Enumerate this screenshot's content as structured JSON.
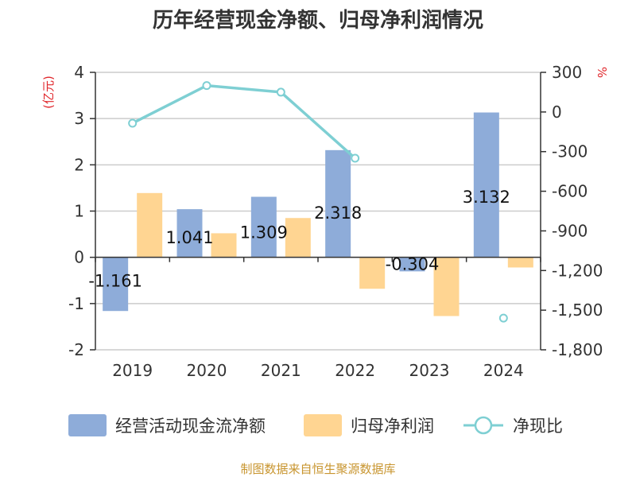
{
  "colors": {
    "bar_cash": "#8eacd9",
    "bar_profit": "#ffd592",
    "line_ratio": "#7ecfd3",
    "axis": "#333333",
    "grid": "#cccccc",
    "unit": "#e0262b",
    "source": "#c8952f"
  },
  "chart_data": {
    "type": "bar",
    "title": "历年经营现金净额、归母净利润情况",
    "categories": [
      "2019",
      "2020",
      "2021",
      "2022",
      "2023",
      "2024"
    ],
    "left_axis": {
      "label": "(亿元)",
      "ylim": [
        -2,
        4
      ],
      "ticks": [
        "4",
        "3",
        "2",
        "1",
        "0",
        "-1",
        "-2"
      ],
      "tick_values": [
        4,
        3,
        2,
        1,
        0,
        -1,
        -2
      ]
    },
    "right_axis": {
      "label": "%",
      "ylim": [
        -1800,
        300
      ],
      "ticks": [
        "300",
        "0",
        "-300",
        "-600",
        "-900",
        "-1,200",
        "-1,500",
        "-1,800"
      ],
      "tick_values": [
        300,
        0,
        -300,
        -600,
        -900,
        -1200,
        -1500,
        -1800
      ]
    },
    "grid": true,
    "legend_position": "bottom",
    "series": [
      {
        "name": "经营活动现金流净额",
        "type": "bar",
        "axis": "left",
        "values": [
          -1.161,
          1.041,
          1.309,
          2.318,
          -0.304,
          3.132
        ],
        "labels": [
          "-1.161",
          "1.041",
          "1.309",
          "2.318",
          "-0.304",
          "3.132"
        ]
      },
      {
        "name": "归母净利润",
        "type": "bar",
        "axis": "left",
        "values": [
          1.39,
          0.52,
          0.85,
          -0.68,
          -1.27,
          -0.22
        ]
      },
      {
        "name": "净现比",
        "type": "line",
        "axis": "right",
        "values": [
          -85,
          200,
          150,
          -350,
          null,
          -1560
        ]
      }
    ]
  },
  "source_text": "制图数据来自恒生聚源数据库"
}
